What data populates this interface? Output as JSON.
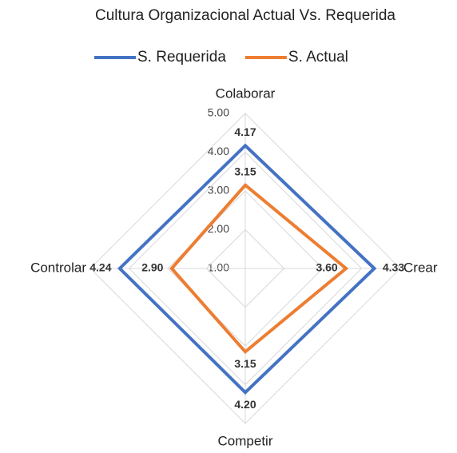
{
  "chart_data": {
    "type": "radar",
    "title": "Cultura Organizacional Actual Vs. Requerida",
    "categories": [
      "Colaborar",
      "Crear",
      "Competir",
      "Controlar"
    ],
    "series": [
      {
        "name": "S. Requerida",
        "color": "#4472c4",
        "values": [
          4.17,
          4.33,
          4.2,
          4.24
        ],
        "value_labels": [
          "4.17",
          "4.33",
          "4.20",
          "4.24"
        ]
      },
      {
        "name": "S. Actual",
        "color": "#ed7d31",
        "values": [
          3.15,
          3.6,
          3.15,
          2.9
        ],
        "value_labels": [
          "3.15",
          "3.60",
          "3.15",
          "2.90"
        ]
      }
    ],
    "ylim": [
      1,
      5
    ],
    "yticks": [
      {
        "value": 1,
        "label": "1.00"
      },
      {
        "value": 2,
        "label": "2.00"
      },
      {
        "value": 3,
        "label": "3.00"
      },
      {
        "value": 4,
        "label": "4.00"
      },
      {
        "value": 5,
        "label": "5.00"
      }
    ],
    "grid": true,
    "legend": "top"
  }
}
